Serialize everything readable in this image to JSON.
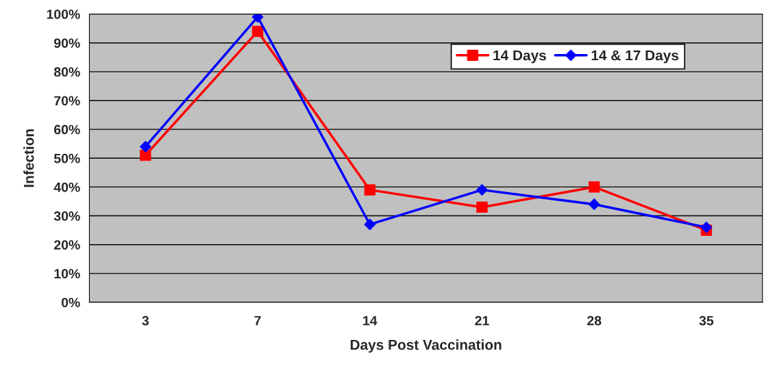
{
  "chart_data": {
    "type": "line",
    "xlabel": "Days Post Vaccination",
    "ylabel": "Infection",
    "categories": [
      "3",
      "7",
      "14",
      "21",
      "28",
      "35"
    ],
    "series": [
      {
        "name": "14 Days",
        "color": "#ff0000",
        "marker": "square",
        "values": [
          51,
          94,
          39,
          33,
          40,
          25
        ]
      },
      {
        "name": "14 & 17 Days",
        "color": "#0000ff",
        "marker": "diamond",
        "values": [
          54,
          99,
          27,
          39,
          34,
          26
        ]
      }
    ],
    "ylim": [
      0,
      100
    ],
    "yticks": [
      {
        "value": 0,
        "label": "0%"
      },
      {
        "value": 10,
        "label": "10%"
      },
      {
        "value": 20,
        "label": "20%"
      },
      {
        "value": 30,
        "label": "30%"
      },
      {
        "value": 40,
        "label": "40%"
      },
      {
        "value": 50,
        "label": "50%"
      },
      {
        "value": 60,
        "label": "60%"
      },
      {
        "value": 70,
        "label": "70%"
      },
      {
        "value": 80,
        "label": "80%"
      },
      {
        "value": 90,
        "label": "90%"
      },
      {
        "value": 100,
        "label": "100%"
      }
    ],
    "grid": "y",
    "legend": "top right",
    "line_style": "solid"
  }
}
